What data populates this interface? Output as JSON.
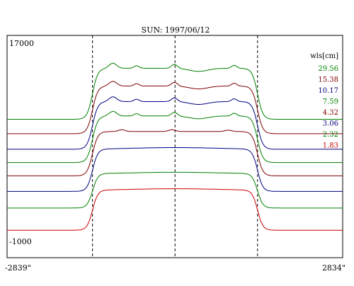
{
  "chart_data": {
    "type": "line",
    "title": "SUN: 1997/06/12",
    "xlabel": "",
    "ylabel": "",
    "x_tick_labels": [
      "-2839\"",
      "2834\""
    ],
    "xlim": [
      -2839,
      2834
    ],
    "y_tick_labels": [
      "17000",
      "-1000"
    ],
    "ylim": [
      -1000,
      17000
    ],
    "grid": false,
    "legend": {
      "title": "wls[cm]",
      "placement": "top-right"
    },
    "vertical_markers_x": [
      -1395,
      0,
      1395
    ],
    "series": [
      {
        "name": "29.56",
        "color": "#008000",
        "baseline": 10200,
        "amplitude": 4600,
        "variant": "spiky"
      },
      {
        "name": "15.38",
        "color": "#800000",
        "baseline": 8900,
        "amplitude": 4300,
        "variant": "spiky"
      },
      {
        "name": "10.17",
        "color": "#000080",
        "baseline": 7500,
        "amplitude": 4300,
        "variant": "spiky"
      },
      {
        "name": "7.59",
        "color": "#008000",
        "baseline": 6300,
        "amplitude": 4200,
        "variant": "spiky"
      },
      {
        "name": "4.32",
        "color": "#800000",
        "baseline": 5100,
        "amplitude": 4000,
        "variant": "mild"
      },
      {
        "name": "3.06",
        "color": "#000080",
        "baseline": 3700,
        "amplitude": 3800,
        "variant": "smooth"
      },
      {
        "name": "2.32",
        "color": "#008000",
        "baseline": 2200,
        "amplitude": 3100,
        "variant": "smooth"
      },
      {
        "name": "1.83",
        "color": "#cc0000",
        "baseline": 200,
        "amplitude": 3600,
        "variant": "smooth"
      }
    ]
  }
}
